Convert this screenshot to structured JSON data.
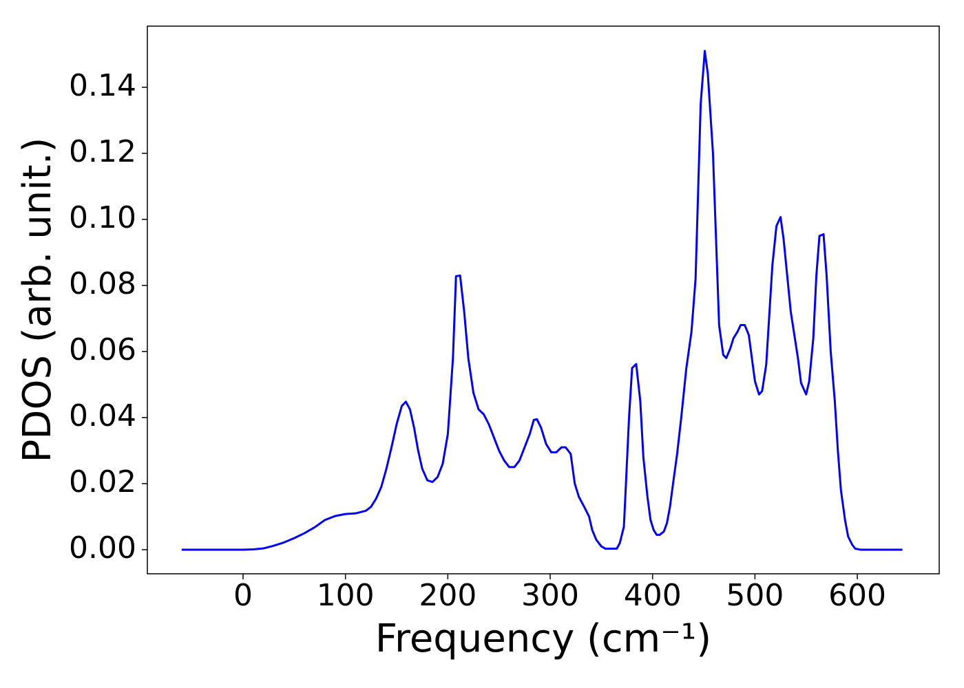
{
  "chart_data": {
    "type": "line",
    "xlabel": "Frequency (cm⁻¹)",
    "ylabel": "PDOS (arb. unit.)",
    "color": "#0000ff",
    "xlim": [
      -93.5,
      680
    ],
    "ylim": [
      -0.0073,
      0.1585
    ],
    "xticks": [
      0,
      100,
      200,
      300,
      400,
      500,
      600
    ],
    "yticks": [
      {
        "value": 0,
        "label": "0.00"
      },
      0.02,
      0.04,
      0.06,
      0.08,
      {
        "value": 0.1,
        "label": "0.10"
      },
      0.12,
      0.14
    ],
    "x": [
      -60,
      -40,
      -20,
      0,
      10,
      20,
      30,
      40,
      50,
      60,
      70,
      80,
      90,
      100,
      110,
      120,
      125,
      130,
      135,
      140,
      145,
      150,
      155,
      159,
      163,
      167,
      171,
      175,
      180,
      185,
      190,
      195,
      200,
      205,
      208,
      212,
      216,
      220,
      225,
      230,
      235,
      240,
      245,
      250,
      255,
      260,
      265,
      270,
      275,
      280,
      284,
      287,
      291,
      296,
      301,
      306,
      311,
      315,
      320,
      324,
      328,
      334,
      338,
      341,
      345,
      350,
      354,
      358,
      365,
      368,
      372,
      374,
      377,
      380,
      384,
      388,
      391,
      395,
      398,
      401,
      404,
      407,
      411,
      414,
      417,
      420,
      424,
      428,
      433,
      438,
      442,
      447,
      451,
      454,
      459,
      465,
      469,
      472,
      476,
      479,
      483,
      486,
      490,
      494,
      500,
      504,
      507,
      511,
      517,
      521,
      525,
      528,
      535,
      542,
      545,
      550,
      553,
      557,
      560,
      563,
      567,
      570,
      574,
      578,
      581,
      584,
      588,
      591,
      595,
      598,
      603,
      644
    ],
    "values": [
      0,
      0,
      0,
      0,
      0.0001,
      0.0004,
      0.0012,
      0.0022,
      0.0035,
      0.005,
      0.0068,
      0.009,
      0.0102,
      0.0108,
      0.011,
      0.0118,
      0.013,
      0.0155,
      0.019,
      0.0245,
      0.031,
      0.038,
      0.0435,
      0.0448,
      0.0425,
      0.037,
      0.03,
      0.0245,
      0.021,
      0.0205,
      0.022,
      0.026,
      0.035,
      0.058,
      0.0828,
      0.083,
      0.072,
      0.058,
      0.0475,
      0.0425,
      0.041,
      0.038,
      0.034,
      0.03,
      0.027,
      0.025,
      0.025,
      0.027,
      0.031,
      0.035,
      0.0393,
      0.0395,
      0.037,
      0.032,
      0.0295,
      0.0295,
      0.031,
      0.031,
      0.029,
      0.02,
      0.016,
      0.0125,
      0.01,
      0.006,
      0.003,
      0.001,
      0.0003,
      0.0003,
      0.0003,
      0.002,
      0.007,
      0.02,
      0.04,
      0.055,
      0.0562,
      0.045,
      0.028,
      0.016,
      0.009,
      0.006,
      0.0045,
      0.0045,
      0.0055,
      0.008,
      0.013,
      0.02,
      0.029,
      0.04,
      0.055,
      0.066,
      0.082,
      0.135,
      0.151,
      0.144,
      0.12,
      0.068,
      0.059,
      0.058,
      0.061,
      0.064,
      0.066,
      0.068,
      0.068,
      0.065,
      0.051,
      0.047,
      0.048,
      0.056,
      0.086,
      0.098,
      0.1007,
      0.094,
      0.072,
      0.058,
      0.0505,
      0.047,
      0.051,
      0.064,
      0.083,
      0.095,
      0.0955,
      0.083,
      0.06,
      0.045,
      0.03,
      0.018,
      0.009,
      0.004,
      0.0015,
      0.0003,
      0,
      0
    ]
  }
}
